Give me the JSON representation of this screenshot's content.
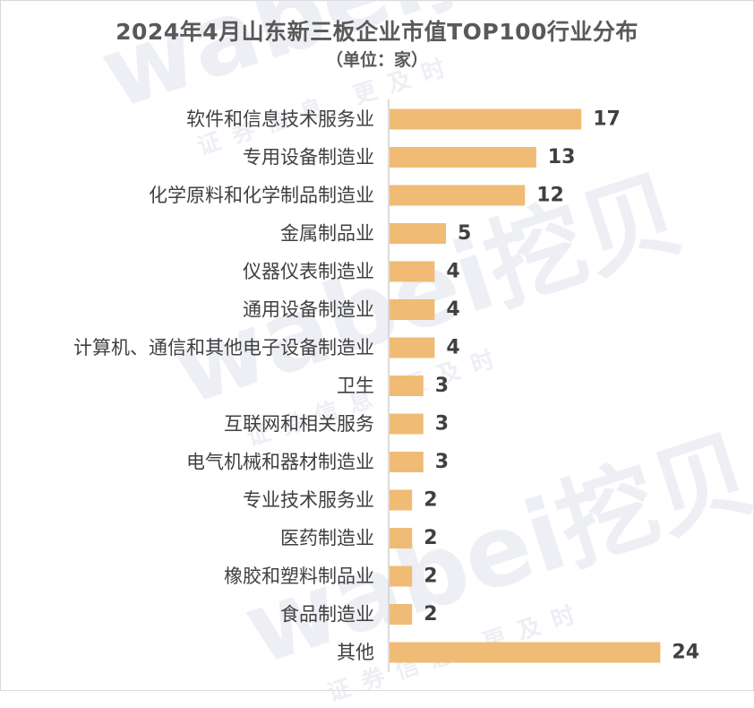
{
  "chart_data": {
    "type": "bar",
    "orientation": "horizontal",
    "title": "2024年4月山东新三板企业市值TOP100行业分布",
    "subtitle": "（单位：家）",
    "categories": [
      "软件和信息技术服务业",
      "专用设备制造业",
      "化学原料和化学制品制造业",
      "金属制品业",
      "仪器仪表制造业",
      "通用设备制造业",
      "计算机、通信和其他电子设备制造业",
      "卫生",
      "互联网和相关服务",
      "电气机械和器材制造业",
      "专业技术服务业",
      "医药制造业",
      "橡胶和塑料制品业",
      "食品制造业",
      "其他"
    ],
    "values": [
      17,
      13,
      12,
      5,
      4,
      4,
      4,
      3,
      3,
      3,
      2,
      2,
      2,
      2,
      24
    ],
    "value_labels": [
      "17",
      "13",
      "12",
      "5",
      "4",
      "4",
      "4",
      "3",
      "3",
      "3",
      "2",
      "2",
      "2",
      "2",
      "24"
    ],
    "xlim": [
      0,
      25
    ],
    "bar_color": "#f0bb75",
    "grid": false,
    "legend": "none"
  },
  "watermark": {
    "brand": "wabei挖贝",
    "tagline": "证券信息 更及时"
  },
  "colors": {
    "text": "#404040",
    "title": "#595959",
    "axis": "#d0d0d0"
  }
}
